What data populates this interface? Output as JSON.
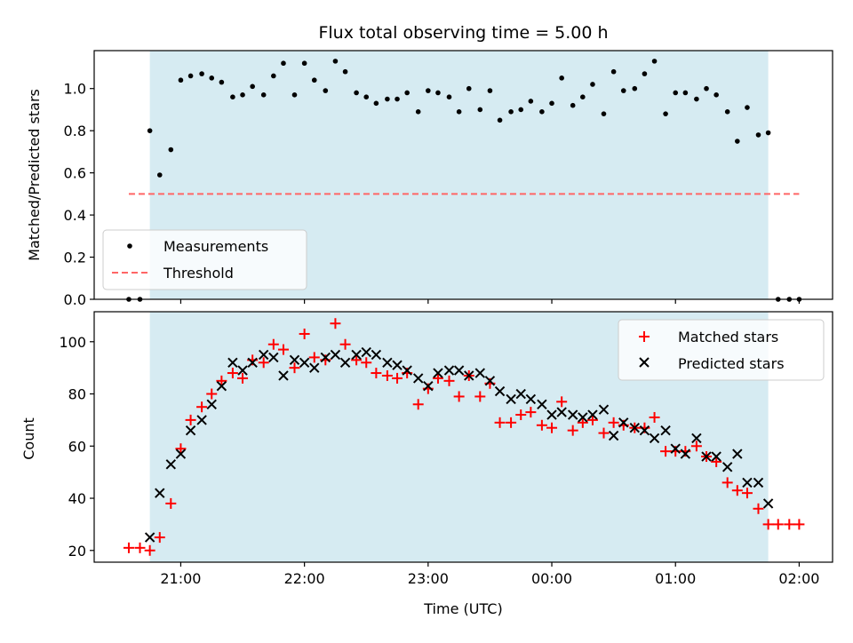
{
  "chart_data": [
    {
      "type": "scatter",
      "title": "Flux total observing time = 5.00 h",
      "ylabel": "Matched/Predicted stars",
      "xlabel": "",
      "ylim": [
        0,
        1.18
      ],
      "grid": false,
      "x_units": "hours since 00:00 UTC (20:35 = -3.42)",
      "xlim": [
        -3.7,
        2.27
      ],
      "yticks": [
        "0.0",
        "0.2",
        "0.4",
        "0.6",
        "0.8",
        "1.0"
      ],
      "ytick_values": [
        0.0,
        0.2,
        0.4,
        0.6,
        0.8,
        1.0
      ],
      "shaded_span": {
        "x0": -3.25,
        "x1": 1.75,
        "color": "#add8e6"
      },
      "legend_position": "lower-left",
      "series": [
        {
          "name": "Measurements",
          "marker": "dot",
          "color": "#000000",
          "points": [
            [
              -3.42,
              0.0
            ],
            [
              -3.33,
              0.0
            ],
            [
              -3.25,
              0.8
            ],
            [
              -3.17,
              0.59
            ],
            [
              -3.08,
              0.71
            ],
            [
              -3.0,
              1.04
            ],
            [
              -2.92,
              1.06
            ],
            [
              -2.83,
              1.07
            ],
            [
              -2.75,
              1.05
            ],
            [
              -2.67,
              1.03
            ],
            [
              -2.58,
              0.96
            ],
            [
              -2.5,
              0.97
            ],
            [
              -2.42,
              1.01
            ],
            [
              -2.33,
              0.97
            ],
            [
              -2.25,
              1.06
            ],
            [
              -2.17,
              1.12
            ],
            [
              -2.08,
              0.97
            ],
            [
              -2.0,
              1.12
            ],
            [
              -1.92,
              1.04
            ],
            [
              -1.83,
              0.99
            ],
            [
              -1.75,
              1.13
            ],
            [
              -1.67,
              1.08
            ],
            [
              -1.58,
              0.98
            ],
            [
              -1.5,
              0.96
            ],
            [
              -1.42,
              0.93
            ],
            [
              -1.33,
              0.95
            ],
            [
              -1.25,
              0.95
            ],
            [
              -1.17,
              0.98
            ],
            [
              -1.08,
              0.89
            ],
            [
              -1.0,
              0.99
            ],
            [
              -0.92,
              0.98
            ],
            [
              -0.83,
              0.96
            ],
            [
              -0.75,
              0.89
            ],
            [
              -0.67,
              1.0
            ],
            [
              -0.58,
              0.9
            ],
            [
              -0.5,
              0.99
            ],
            [
              -0.42,
              0.85
            ],
            [
              -0.33,
              0.89
            ],
            [
              -0.25,
              0.9
            ],
            [
              -0.17,
              0.94
            ],
            [
              -0.08,
              0.89
            ],
            [
              0.0,
              0.93
            ],
            [
              0.08,
              1.05
            ],
            [
              0.17,
              0.92
            ],
            [
              0.25,
              0.96
            ],
            [
              0.33,
              1.02
            ],
            [
              0.42,
              0.88
            ],
            [
              0.5,
              1.08
            ],
            [
              0.58,
              0.99
            ],
            [
              0.67,
              1.0
            ],
            [
              0.75,
              1.07
            ],
            [
              0.83,
              1.13
            ],
            [
              0.92,
              0.88
            ],
            [
              1.0,
              0.98
            ],
            [
              1.08,
              0.98
            ],
            [
              1.17,
              0.95
            ],
            [
              1.25,
              1.0
            ],
            [
              1.33,
              0.97
            ],
            [
              1.42,
              0.89
            ],
            [
              1.5,
              0.75
            ],
            [
              1.58,
              0.91
            ],
            [
              1.67,
              0.78
            ],
            [
              1.75,
              0.79
            ],
            [
              1.83,
              0.0
            ],
            [
              1.92,
              0.0
            ],
            [
              2.0,
              0.0
            ]
          ]
        },
        {
          "name": "Threshold",
          "marker": "dashed-line",
          "color": "#ff6666",
          "points": [
            [
              -3.42,
              0.5
            ],
            [
              2.0,
              0.5
            ]
          ]
        }
      ]
    },
    {
      "type": "scatter",
      "title": "",
      "ylabel": "Count",
      "xlabel": "Time (UTC)",
      "ylim": [
        15.5,
        111.5
      ],
      "grid": false,
      "x_units": "hours since 00:00 UTC (20:35 = -3.42)",
      "xlim": [
        -3.7,
        2.27
      ],
      "xticks": [
        "21:00",
        "22:00",
        "23:00",
        "00:00",
        "01:00",
        "02:00"
      ],
      "xtick_values": [
        -3,
        -2,
        -1,
        0,
        1,
        2
      ],
      "yticks": [
        "20",
        "40",
        "60",
        "80",
        "100"
      ],
      "ytick_values": [
        20,
        40,
        60,
        80,
        100
      ],
      "shaded_span": {
        "x0": -3.25,
        "x1": 1.75,
        "color": "#add8e6"
      },
      "legend_position": "upper-right",
      "series": [
        {
          "name": "Matched stars",
          "marker": "plus",
          "color": "#ff0000",
          "points": [
            [
              -3.42,
              21
            ],
            [
              -3.33,
              21
            ],
            [
              -3.25,
              20
            ],
            [
              -3.17,
              25
            ],
            [
              -3.08,
              38
            ],
            [
              -3.0,
              59
            ],
            [
              -2.92,
              70
            ],
            [
              -2.83,
              75
            ],
            [
              -2.75,
              80
            ],
            [
              -2.67,
              85
            ],
            [
              -2.58,
              88
            ],
            [
              -2.5,
              86
            ],
            [
              -2.42,
              93
            ],
            [
              -2.33,
              92
            ],
            [
              -2.25,
              99
            ],
            [
              -2.17,
              97
            ],
            [
              -2.08,
              90
            ],
            [
              -2.0,
              103
            ],
            [
              -1.92,
              94
            ],
            [
              -1.83,
              93
            ],
            [
              -1.75,
              107
            ],
            [
              -1.67,
              99
            ],
            [
              -1.58,
              93
            ],
            [
              -1.5,
              92
            ],
            [
              -1.42,
              88
            ],
            [
              -1.33,
              87
            ],
            [
              -1.25,
              86
            ],
            [
              -1.17,
              88
            ],
            [
              -1.08,
              76
            ],
            [
              -1.0,
              82
            ],
            [
              -0.92,
              86
            ],
            [
              -0.83,
              85
            ],
            [
              -0.75,
              79
            ],
            [
              -0.67,
              87
            ],
            [
              -0.58,
              79
            ],
            [
              -0.5,
              84
            ],
            [
              -0.42,
              69
            ],
            [
              -0.33,
              69
            ],
            [
              -0.25,
              72
            ],
            [
              -0.17,
              73
            ],
            [
              -0.08,
              68
            ],
            [
              0.0,
              67
            ],
            [
              0.08,
              77
            ],
            [
              0.17,
              66
            ],
            [
              0.25,
              69
            ],
            [
              0.33,
              70
            ],
            [
              0.42,
              65
            ],
            [
              0.5,
              69
            ],
            [
              0.58,
              68
            ],
            [
              0.67,
              67
            ],
            [
              0.75,
              67
            ],
            [
              0.83,
              71
            ],
            [
              0.92,
              58
            ],
            [
              1.0,
              58
            ],
            [
              1.08,
              58
            ],
            [
              1.17,
              60
            ],
            [
              1.25,
              56
            ],
            [
              1.33,
              54
            ],
            [
              1.42,
              46
            ],
            [
              1.5,
              43
            ],
            [
              1.58,
              42
            ],
            [
              1.67,
              36
            ],
            [
              1.75,
              30
            ],
            [
              1.83,
              30
            ],
            [
              1.92,
              30
            ],
            [
              2.0,
              30
            ]
          ]
        },
        {
          "name": "Predicted stars",
          "marker": "x",
          "color": "#000000",
          "points": [
            [
              -3.25,
              25
            ],
            [
              -3.17,
              42
            ],
            [
              -3.08,
              53
            ],
            [
              -3.0,
              57
            ],
            [
              -2.92,
              66
            ],
            [
              -2.83,
              70
            ],
            [
              -2.75,
              76
            ],
            [
              -2.67,
              83
            ],
            [
              -2.58,
              92
            ],
            [
              -2.5,
              89
            ],
            [
              -2.42,
              92
            ],
            [
              -2.33,
              95
            ],
            [
              -2.25,
              94
            ],
            [
              -2.17,
              87
            ],
            [
              -2.08,
              93
            ],
            [
              -2.0,
              92
            ],
            [
              -1.92,
              90
            ],
            [
              -1.83,
              94
            ],
            [
              -1.75,
              95
            ],
            [
              -1.67,
              92
            ],
            [
              -1.58,
              95
            ],
            [
              -1.5,
              96
            ],
            [
              -1.42,
              95
            ],
            [
              -1.33,
              92
            ],
            [
              -1.25,
              91
            ],
            [
              -1.17,
              89
            ],
            [
              -1.08,
              86
            ],
            [
              -1.0,
              83
            ],
            [
              -0.92,
              88
            ],
            [
              -0.83,
              89
            ],
            [
              -0.75,
              89
            ],
            [
              -0.67,
              87
            ],
            [
              -0.58,
              88
            ],
            [
              -0.5,
              85
            ],
            [
              -0.42,
              81
            ],
            [
              -0.33,
              78
            ],
            [
              -0.25,
              80
            ],
            [
              -0.17,
              78
            ],
            [
              -0.08,
              76
            ],
            [
              0.0,
              72
            ],
            [
              0.08,
              73
            ],
            [
              0.17,
              72
            ],
            [
              0.25,
              71
            ],
            [
              0.33,
              72
            ],
            [
              0.42,
              74
            ],
            [
              0.5,
              64
            ],
            [
              0.58,
              69
            ],
            [
              0.67,
              67
            ],
            [
              0.75,
              66
            ],
            [
              0.83,
              63
            ],
            [
              0.92,
              66
            ],
            [
              1.0,
              59
            ],
            [
              1.08,
              57
            ],
            [
              1.17,
              63
            ],
            [
              1.25,
              56
            ],
            [
              1.33,
              56
            ],
            [
              1.42,
              52
            ],
            [
              1.5,
              57
            ],
            [
              1.58,
              46
            ],
            [
              1.67,
              46
            ],
            [
              1.75,
              38
            ]
          ]
        }
      ]
    }
  ]
}
